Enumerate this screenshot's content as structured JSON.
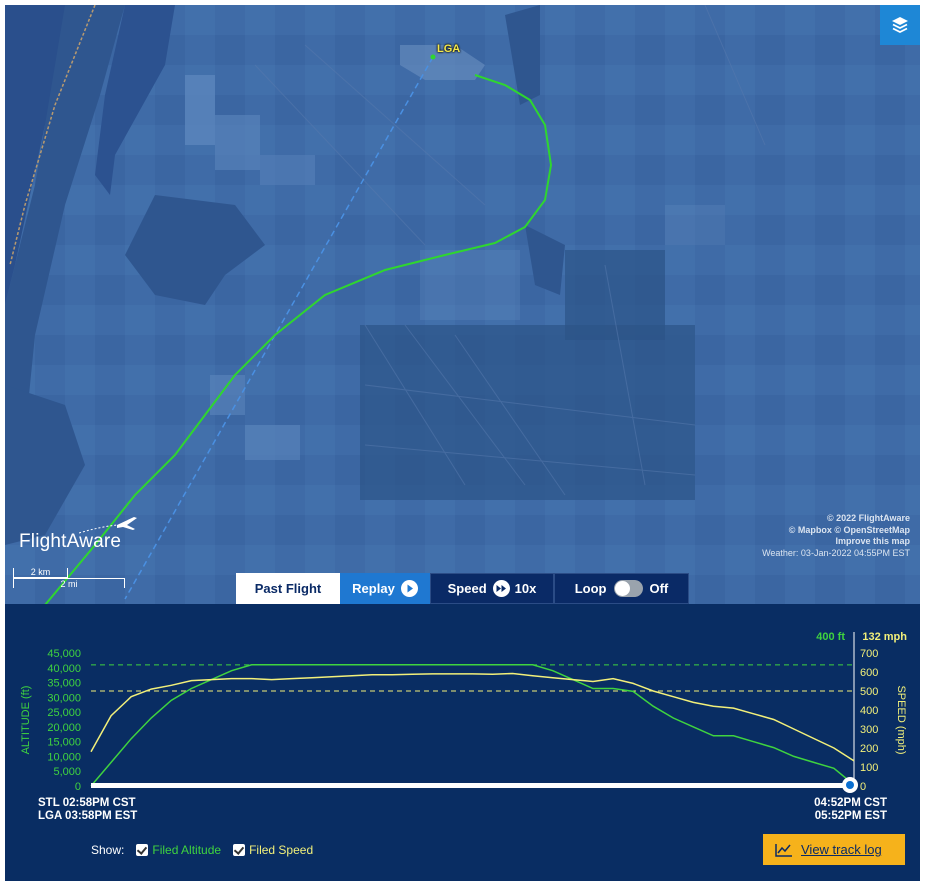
{
  "map": {
    "airport_label": "LGA",
    "logo_text": "FlightAware",
    "scale": {
      "km": "2 km",
      "mi": "2 mi"
    },
    "attribution": {
      "line1": "© 2022 FlightAware",
      "line2": "© Mapbox © OpenStreetMap",
      "line3": "Improve this map",
      "weather": "Weather: 03-Jan-2022 04:55PM EST"
    },
    "layers_icon": "layers-icon",
    "colors": {
      "flight_track": "#2fd62f",
      "planned_route": "#4a90e2",
      "map_base": "#3d6aa6"
    }
  },
  "controls": {
    "past_flight": "Past Flight",
    "replay": "Replay",
    "speed_label": "Speed",
    "speed_value": "10x",
    "loop_label": "Loop",
    "loop_value": "Off"
  },
  "graph": {
    "current_altitude": "400 ft",
    "current_speed": "132 mph",
    "y_left_label": "ALTITUDE (ft)",
    "y_right_label": "SPEED (mph)",
    "origin": {
      "dep_local": "STL 02:58PM CST",
      "dep_dest_tz": "LGA 03:58PM EST"
    },
    "destination": {
      "arr_origin_tz": "04:52PM CST",
      "arr_local": "05:52PM EST"
    },
    "show_label": "Show:",
    "filed_altitude": "Filed Altitude",
    "filed_speed": "Filed Speed",
    "view_track_log": "View track log",
    "colors": {
      "altitude": "#3fd33f",
      "speed": "#f2f07a",
      "background": "#092d63"
    }
  },
  "chart_data": {
    "type": "line",
    "x_unit": "minutes since departure",
    "x": [
      0,
      3,
      6,
      9,
      12,
      15,
      18,
      21,
      24,
      27,
      30,
      33,
      36,
      39,
      42,
      45,
      48,
      51,
      54,
      57,
      60,
      63,
      66,
      69,
      72,
      75,
      78,
      81,
      84,
      87,
      90,
      93,
      96,
      99,
      102,
      105,
      108,
      111,
      114
    ],
    "series": [
      {
        "name": "Altitude",
        "axis": "left",
        "values": [
          0,
          8000,
          16000,
          23000,
          29000,
          33000,
          36000,
          39000,
          41000,
          41000,
          41000,
          41000,
          41000,
          41000,
          41000,
          41000,
          41000,
          41000,
          41000,
          41000,
          41000,
          41000,
          41000,
          39000,
          36000,
          33000,
          33000,
          32000,
          27000,
          23000,
          20000,
          17000,
          17000,
          15000,
          13000,
          10000,
          8000,
          6000,
          400
        ]
      },
      {
        "name": "Speed",
        "axis": "right",
        "values": [
          180,
          370,
          470,
          510,
          530,
          555,
          560,
          565,
          565,
          560,
          565,
          570,
          575,
          580,
          585,
          585,
          588,
          590,
          590,
          590,
          588,
          592,
          580,
          570,
          560,
          550,
          565,
          540,
          500,
          470,
          440,
          420,
          410,
          380,
          350,
          300,
          250,
          200,
          132
        ]
      }
    ],
    "filed_altitude": 41000,
    "filed_speed": 500,
    "y_left": {
      "label": "ALTITUDE (ft)",
      "ticks": [
        "45,000",
        "40,000",
        "35,000",
        "30,000",
        "25,000",
        "20,000",
        "15,000",
        "10,000",
        "5,000",
        "0"
      ],
      "range": [
        0,
        45000
      ]
    },
    "y_right": {
      "label": "SPEED (mph)",
      "ticks": [
        "700",
        "600",
        "500",
        "400",
        "300",
        "200",
        "100",
        "0"
      ],
      "range": [
        0,
        700
      ]
    }
  }
}
